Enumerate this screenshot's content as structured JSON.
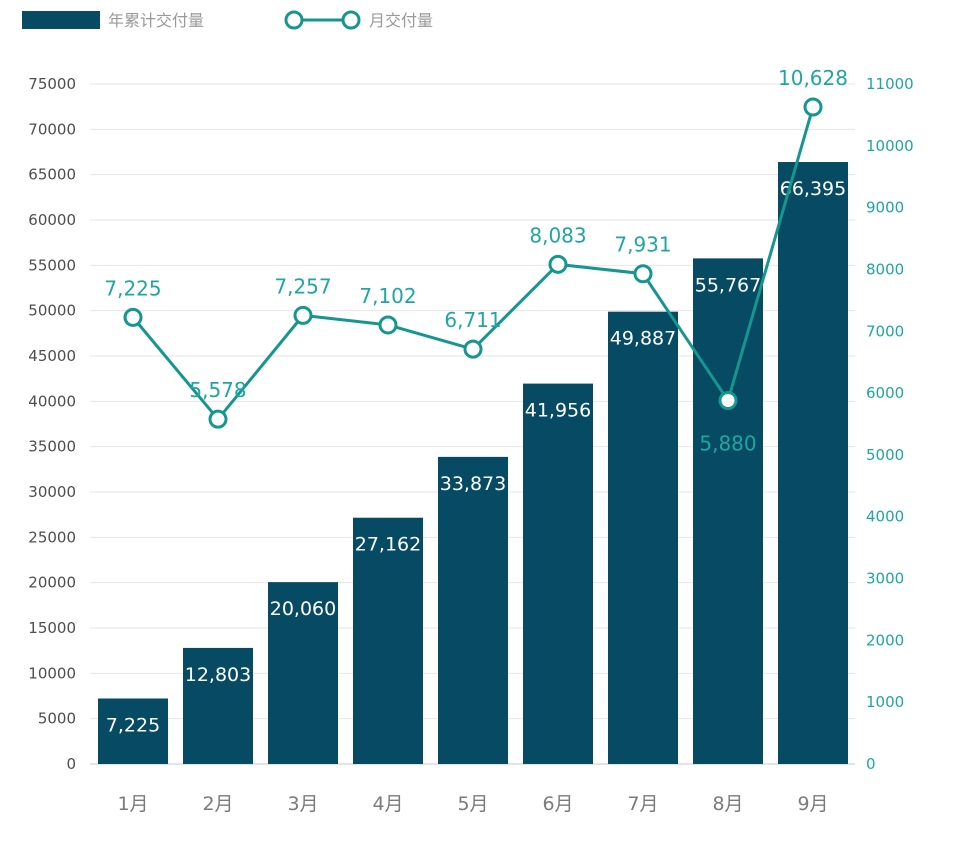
{
  "chart_data": {
    "type": "bar+line",
    "categories": [
      "1月",
      "2月",
      "3月",
      "4月",
      "5月",
      "6月",
      "7月",
      "8月",
      "9月"
    ],
    "series": [
      {
        "name": "年累计交付量",
        "type": "bar",
        "axis": "left",
        "color": "#064a63",
        "values": [
          7225,
          12803,
          20060,
          27162,
          33873,
          41956,
          49887,
          55767,
          66395
        ],
        "labels": [
          "7,225",
          "12,803",
          "20,060",
          "27,162",
          "33,873",
          "41,956",
          "49,887",
          "55,767",
          "66,395"
        ]
      },
      {
        "name": "月交付量",
        "type": "line",
        "axis": "right",
        "color": "#15968f",
        "values": [
          7225,
          5578,
          7257,
          7102,
          6711,
          8083,
          7931,
          5880,
          10628
        ],
        "labels": [
          "7,225",
          "5,578",
          "7,257",
          "7,102",
          "6,711",
          "8,083",
          "7,931",
          "5,880",
          "10,628"
        ]
      }
    ],
    "y_left": {
      "range": [
        0,
        75000
      ],
      "ticks": [
        "0",
        "5000",
        "10000",
        "15000",
        "20000",
        "25000",
        "30000",
        "35000",
        "40000",
        "45000",
        "50000",
        "55000",
        "60000",
        "65000",
        "70000",
        "75000"
      ]
    },
    "y_right": {
      "range": [
        0,
        11000
      ],
      "ticks": [
        "0",
        "1000",
        "2000",
        "3000",
        "4000",
        "5000",
        "6000",
        "7000",
        "8000",
        "9000",
        "10000",
        "11000"
      ]
    },
    "grid": true,
    "legend": "top-left"
  }
}
